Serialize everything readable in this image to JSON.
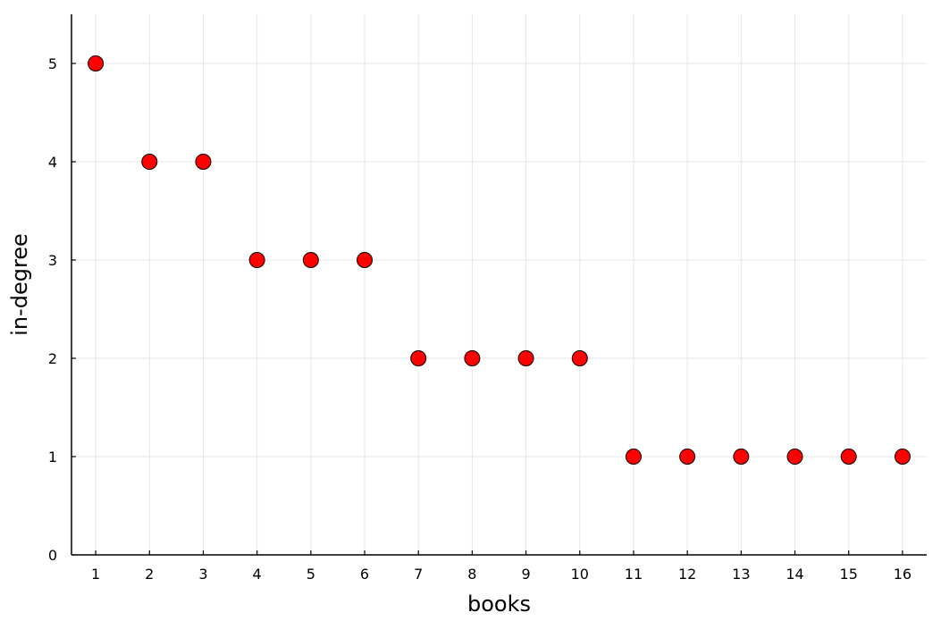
{
  "chart_data": {
    "type": "scatter",
    "title": "",
    "xlabel": "books",
    "ylabel": "in-degree",
    "x": [
      1,
      2,
      3,
      4,
      5,
      6,
      7,
      8,
      9,
      10,
      11,
      12,
      13,
      14,
      15,
      16
    ],
    "y": [
      5,
      4,
      4,
      3,
      3,
      3,
      2,
      2,
      2,
      2,
      1,
      1,
      1,
      1,
      1,
      1
    ],
    "xticks": [
      1,
      2,
      3,
      4,
      5,
      6,
      7,
      8,
      9,
      10,
      11,
      12,
      13,
      14,
      15,
      16
    ],
    "yticks": [
      0,
      1,
      2,
      3,
      4,
      5
    ],
    "xlim": [
      0.55,
      16.45
    ],
    "ylim": [
      0,
      5.5
    ],
    "grid": true,
    "legend": "none",
    "marker_color": "#ff0000",
    "marker_edge_color": "#000000"
  }
}
